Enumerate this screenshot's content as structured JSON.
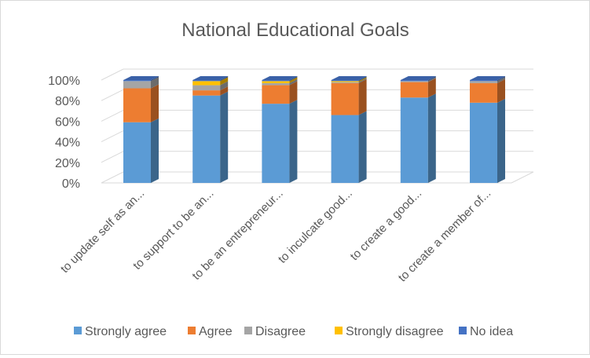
{
  "chart_data": {
    "type": "bar",
    "stacked": true,
    "style": "3d-stacked-column-100",
    "title": "National Educational Goals",
    "xlabel": "",
    "ylabel": "",
    "ylim": [
      0,
      100
    ],
    "yticks": [
      "0%",
      "20%",
      "40%",
      "60%",
      "80%",
      "100%"
    ],
    "grid": true,
    "legend_position": "bottom",
    "categories": [
      "to update self as an...",
      "to support to be an...",
      "to be an entrepreneur...",
      "to inculcate good...",
      "to create a good...",
      "to create a member of..."
    ],
    "series": [
      {
        "name": "Strongly agree",
        "color": "#5b9bd5",
        "values": [
          59,
          85,
          77,
          66,
          83,
          78
        ]
      },
      {
        "name": "Agree",
        "color": "#ed7d31",
        "values": [
          33,
          5,
          18,
          31,
          15,
          19
        ]
      },
      {
        "name": "Disagree",
        "color": "#a5a5a5",
        "values": [
          7,
          5,
          2,
          1,
          1,
          2
        ]
      },
      {
        "name": "Strongly disagree",
        "color": "#ffc000",
        "values": [
          0,
          4,
          2,
          1,
          0,
          0
        ]
      },
      {
        "name": "No idea",
        "color": "#4472c4",
        "values": [
          1,
          1,
          1,
          1,
          1,
          1
        ]
      }
    ]
  }
}
